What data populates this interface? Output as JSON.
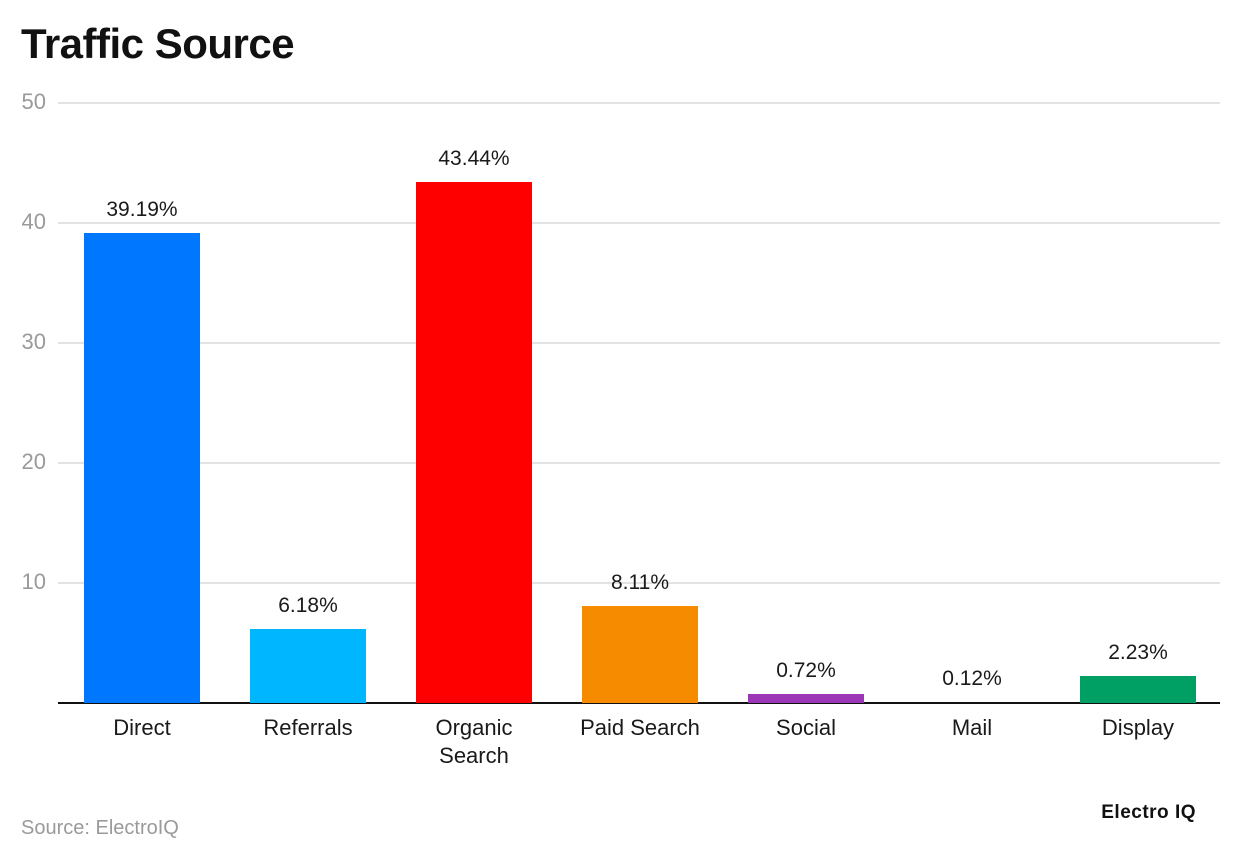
{
  "header": {
    "title": "Traffic Source"
  },
  "footer": {
    "source": "Source: ElectroIQ",
    "brand": "Electro IQ"
  },
  "chart_data": {
    "type": "bar",
    "title": "Traffic Source",
    "xlabel": "",
    "ylabel": "",
    "ylim": [
      0,
      50
    ],
    "yticks": [
      10,
      20,
      30,
      40,
      50
    ],
    "grid": true,
    "legend": "none",
    "categories": [
      "Direct",
      "Referrals",
      "Organic Search",
      "Paid Search",
      "Social",
      "Mail",
      "Display"
    ],
    "values": [
      39.19,
      6.18,
      43.44,
      8.11,
      0.72,
      0.12,
      2.23
    ],
    "labels": [
      "39.19%",
      "6.18%",
      "43.44%",
      "8.11%",
      "0.72%",
      "0.12%",
      "2.23%"
    ],
    "colors": [
      "#0077ff",
      "#00b7ff",
      "#ff0000",
      "#f78b00",
      "#9b36b7",
      "#cccccc",
      "#00a064"
    ],
    "xlabel_lines": [
      [
        "Direct"
      ],
      [
        "Referrals"
      ],
      [
        "Organic",
        "Search"
      ],
      [
        "Paid Search"
      ],
      [
        "Social"
      ],
      [
        "Mail"
      ],
      [
        "Display"
      ]
    ]
  }
}
